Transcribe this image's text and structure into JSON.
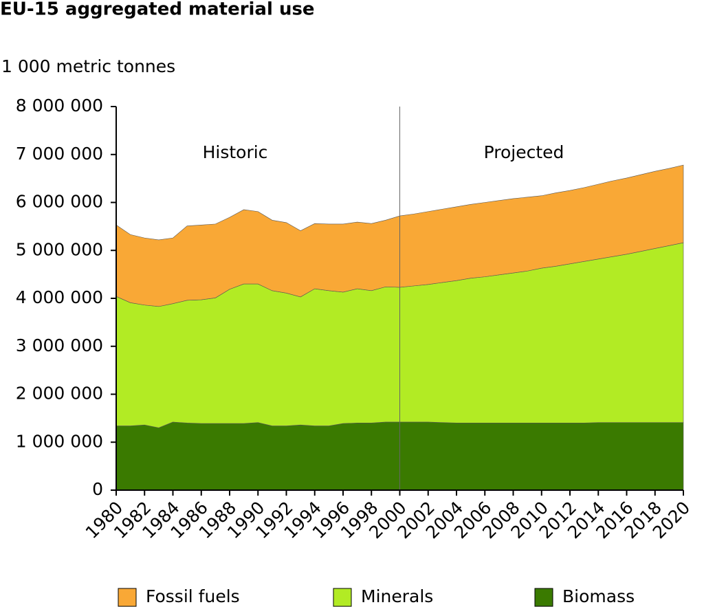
{
  "chart_data": {
    "type": "stacked_area",
    "title": "EU-15 aggregated material use",
    "y_label": "1 000 metric tonnes",
    "annotations": [
      "Historic",
      "Projected"
    ],
    "divider": 2000,
    "x": [
      1980,
      1981,
      1982,
      1983,
      1984,
      1985,
      1986,
      1987,
      1988,
      1989,
      1990,
      1991,
      1992,
      1993,
      1994,
      1995,
      1996,
      1997,
      1998,
      1999,
      2000,
      2001,
      2002,
      2003,
      2004,
      2005,
      2006,
      2007,
      2008,
      2009,
      2010,
      2011,
      2012,
      2013,
      2014,
      2015,
      2016,
      2017,
      2018,
      2019,
      2020
    ],
    "xlim": [
      1980,
      2020
    ],
    "xticks": [
      1980,
      1982,
      1984,
      1986,
      1988,
      1990,
      1992,
      1994,
      1996,
      1998,
      2000,
      2002,
      2004,
      2006,
      2008,
      2010,
      2012,
      2014,
      2016,
      2018,
      2020
    ],
    "ylim": [
      0,
      8000000
    ],
    "yticks": [
      0,
      {
        "value": 1000000,
        "label": "1 000 000"
      },
      {
        "value": 2000000,
        "label": "2 000 000"
      },
      {
        "value": 3000000,
        "label": "3 000 000"
      },
      {
        "value": 4000000,
        "label": "4 000 000"
      },
      {
        "value": 5000000,
        "label": "5 000 000"
      },
      {
        "value": 6000000,
        "label": "6 000 000"
      },
      {
        "value": 7000000,
        "label": "7 000 000"
      },
      {
        "value": 8000000,
        "label": "8 000 000"
      }
    ],
    "series": [
      {
        "name": "Fossil fuels",
        "color": "#f9a836",
        "values": [
          1490000,
          1420000,
          1400000,
          1390000,
          1370000,
          1550000,
          1560000,
          1540000,
          1500000,
          1550000,
          1510000,
          1470000,
          1470000,
          1380000,
          1360000,
          1390000,
          1420000,
          1390000,
          1400000,
          1390000,
          1490000,
          1500000,
          1520000,
          1530000,
          1540000,
          1540000,
          1550000,
          1550000,
          1550000,
          1540000,
          1510000,
          1530000,
          1530000,
          1540000,
          1560000,
          1580000,
          1590000,
          1600000,
          1610000,
          1610000,
          1620000
        ]
      },
      {
        "name": "Minerals",
        "color": "#b2eb24",
        "values": [
          2700000,
          2570000,
          2500000,
          2530000,
          2470000,
          2560000,
          2580000,
          2620000,
          2800000,
          2910000,
          2890000,
          2820000,
          2770000,
          2670000,
          2860000,
          2820000,
          2740000,
          2800000,
          2760000,
          2820000,
          2810000,
          2840000,
          2870000,
          2920000,
          2970000,
          3020000,
          3050000,
          3090000,
          3130000,
          3170000,
          3230000,
          3270000,
          3320000,
          3370000,
          3410000,
          3460000,
          3510000,
          3570000,
          3630000,
          3690000,
          3750000
        ]
      },
      {
        "name": "Biomass",
        "color": "#3a7a00",
        "values": [
          1340000,
          1340000,
          1360000,
          1300000,
          1420000,
          1400000,
          1390000,
          1390000,
          1390000,
          1390000,
          1410000,
          1340000,
          1340000,
          1360000,
          1340000,
          1340000,
          1390000,
          1400000,
          1400000,
          1420000,
          1420000,
          1420000,
          1420000,
          1410000,
          1400000,
          1400000,
          1400000,
          1400000,
          1400000,
          1400000,
          1400000,
          1400000,
          1400000,
          1400000,
          1410000,
          1410000,
          1410000,
          1410000,
          1410000,
          1410000,
          1410000
        ]
      }
    ]
  }
}
